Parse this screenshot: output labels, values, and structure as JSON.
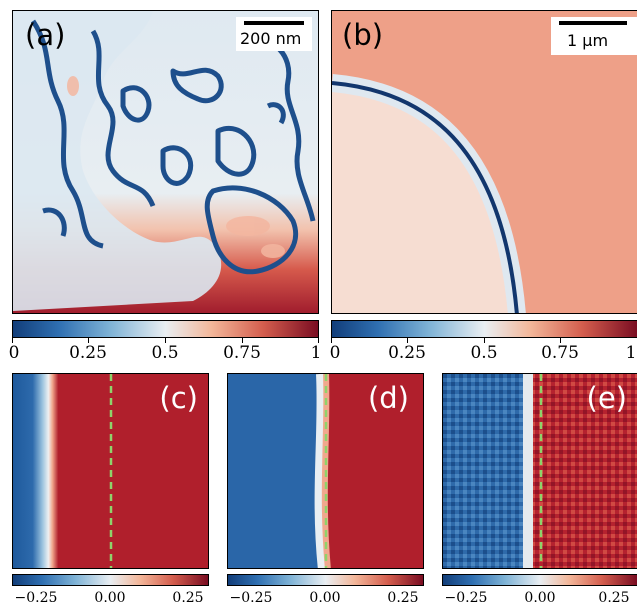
{
  "panels": {
    "a": {
      "label": "(a)",
      "scalebar": "200 nm"
    },
    "b": {
      "label": "(b)",
      "scalebar": "1 μm"
    },
    "c": {
      "label": "(c)"
    },
    "d": {
      "label": "(d)"
    },
    "e": {
      "label": "(e)"
    }
  },
  "colorbars": {
    "top_left": {
      "ticks": [
        "0",
        "0.25",
        "0.5",
        "0.75",
        "1"
      ]
    },
    "top_right": {
      "ticks": [
        "0",
        "0.25",
        "0.5",
        "0.75",
        "1"
      ]
    },
    "bottom_c": {
      "ticks": [
        "−0.25",
        "0.00",
        "0.25"
      ]
    },
    "bottom_d": {
      "ticks": [
        "−0.25",
        "0.00",
        "0.25"
      ]
    },
    "bottom_e": {
      "ticks": [
        "−0.25",
        "0.00",
        "0.25"
      ]
    }
  },
  "colors": {
    "deep_blue": "#1b4f8f",
    "light_blue": "#cfe0ee",
    "pale": "#eef2f5",
    "salmon": "#f0a58d",
    "red": "#b8202e",
    "dark_red": "#7a0d22",
    "green_dash": "#8fd36a"
  }
}
